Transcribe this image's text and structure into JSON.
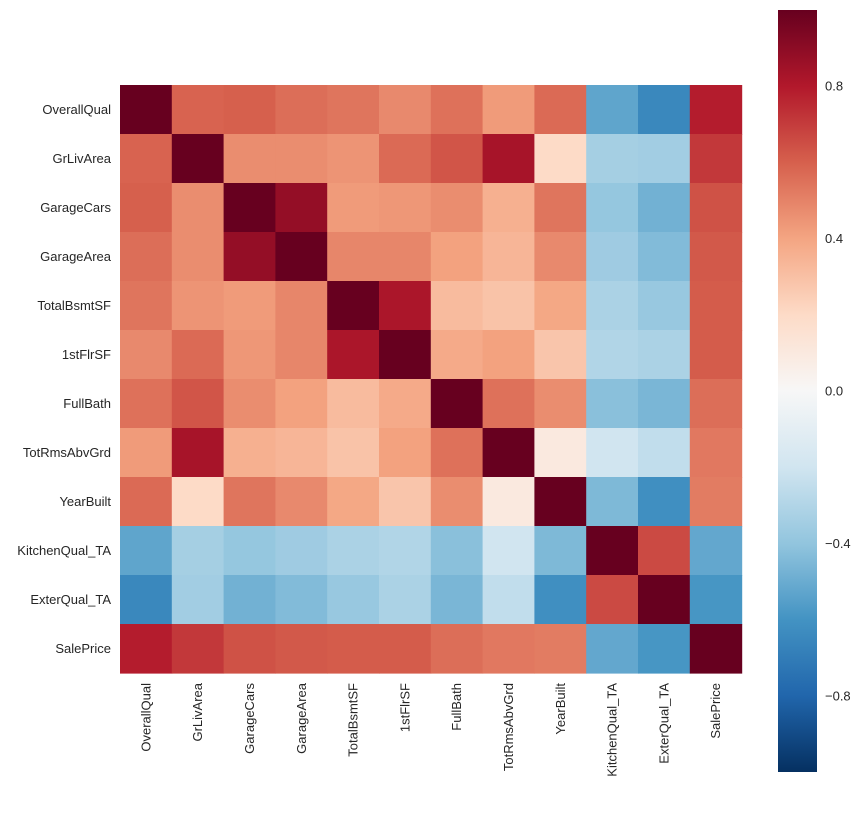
{
  "chart_data": {
    "type": "heatmap",
    "title": "",
    "xlabel": "",
    "ylabel": "",
    "labels": [
      "OverallQual",
      "GrLivArea",
      "GarageCars",
      "GarageArea",
      "TotalBsmtSF",
      "1stFlrSF",
      "FullBath",
      "TotRmsAbvGrd",
      "YearBuilt",
      "KitchenQual_TA",
      "ExterQual_TA",
      "SalePrice"
    ],
    "values": [
      [
        1.0,
        0.59,
        0.6,
        0.56,
        0.54,
        0.48,
        0.55,
        0.43,
        0.57,
        -0.53,
        -0.65,
        0.79
      ],
      [
        0.59,
        1.0,
        0.47,
        0.47,
        0.45,
        0.57,
        0.63,
        0.83,
        0.2,
        -0.34,
        -0.35,
        0.71
      ],
      [
        0.6,
        0.47,
        1.0,
        0.88,
        0.43,
        0.44,
        0.47,
        0.36,
        0.54,
        -0.39,
        -0.48,
        0.64
      ],
      [
        0.56,
        0.47,
        0.88,
        1.0,
        0.49,
        0.49,
        0.41,
        0.34,
        0.48,
        -0.36,
        -0.44,
        0.62
      ],
      [
        0.54,
        0.45,
        0.43,
        0.49,
        1.0,
        0.82,
        0.32,
        0.29,
        0.39,
        -0.32,
        -0.38,
        0.61
      ],
      [
        0.48,
        0.57,
        0.44,
        0.49,
        0.82,
        1.0,
        0.38,
        0.41,
        0.28,
        -0.3,
        -0.32,
        0.61
      ],
      [
        0.55,
        0.63,
        0.47,
        0.41,
        0.32,
        0.38,
        1.0,
        0.55,
        0.47,
        -0.42,
        -0.46,
        0.56
      ],
      [
        0.43,
        0.83,
        0.36,
        0.34,
        0.29,
        0.41,
        0.55,
        1.0,
        0.1,
        -0.2,
        -0.25,
        0.53
      ],
      [
        0.57,
        0.2,
        0.54,
        0.48,
        0.39,
        0.28,
        0.47,
        0.1,
        1.0,
        -0.45,
        -0.62,
        0.52
      ],
      [
        -0.53,
        -0.34,
        -0.39,
        -0.36,
        -0.32,
        -0.3,
        -0.42,
        -0.2,
        -0.45,
        1.0,
        0.66,
        -0.52
      ],
      [
        -0.65,
        -0.35,
        -0.48,
        -0.44,
        -0.38,
        -0.32,
        -0.46,
        -0.25,
        -0.62,
        0.66,
        1.0,
        -0.59
      ],
      [
        0.79,
        0.71,
        0.64,
        0.62,
        0.61,
        0.61,
        0.56,
        0.53,
        0.52,
        -0.52,
        -0.59,
        1.0
      ]
    ],
    "color_range": [
      -1,
      1
    ],
    "colormap": "RdBu_r",
    "colorbar": {
      "ticks": [
        0.8,
        0.4,
        0.0,
        -0.4,
        -0.8
      ],
      "tick_labels": [
        "0.8",
        "0.4",
        "0.0",
        "−0.4",
        "−0.8"
      ],
      "placement": "right"
    },
    "grid": false,
    "legend": "none"
  }
}
